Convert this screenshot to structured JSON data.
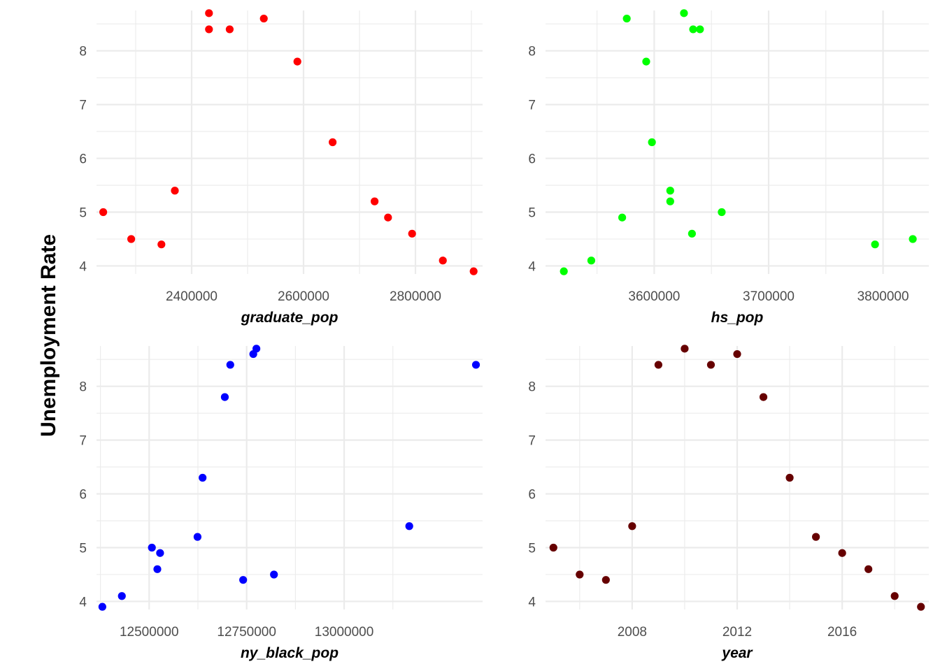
{
  "figure": {
    "ylabel": "Unemployment Rate"
  },
  "chart_data": [
    {
      "type": "scatter",
      "xlabel": "graduate_pop",
      "ylabel": "Unemployment Rate",
      "color": "#ff0000",
      "xlim": [
        2230000,
        2920000
      ],
      "ylim": [
        3.85,
        8.75
      ],
      "x_ticks": [
        2400000,
        2600000,
        2800000
      ],
      "x_tick_labels": [
        "2400000",
        "2600000",
        "2800000"
      ],
      "x_minor": [
        2300000,
        2500000,
        2700000,
        2900000
      ],
      "y_ticks": [
        4,
        5,
        6,
        7,
        8
      ],
      "y_tick_labels": [
        "4",
        "5",
        "6",
        "7",
        "8"
      ],
      "grid": true,
      "points": [
        {
          "x": 2242000,
          "y": 5.0
        },
        {
          "x": 2292000,
          "y": 4.5
        },
        {
          "x": 2346000,
          "y": 4.4
        },
        {
          "x": 2370000,
          "y": 5.4
        },
        {
          "x": 2431000,
          "y": 8.7
        },
        {
          "x": 2431000,
          "y": 8.4
        },
        {
          "x": 2468000,
          "y": 8.4
        },
        {
          "x": 2529000,
          "y": 8.6
        },
        {
          "x": 2589000,
          "y": 7.8
        },
        {
          "x": 2652000,
          "y": 6.3
        },
        {
          "x": 2727000,
          "y": 5.2
        },
        {
          "x": 2751000,
          "y": 4.9
        },
        {
          "x": 2794000,
          "y": 4.6
        },
        {
          "x": 2849000,
          "y": 4.1
        },
        {
          "x": 2904000,
          "y": 3.9
        }
      ]
    },
    {
      "type": "scatter",
      "xlabel": "hs_pop",
      "ylabel": "Unemployment Rate",
      "color": "#00ff00",
      "xlim": [
        3505000,
        3840000
      ],
      "ylim": [
        3.85,
        8.75
      ],
      "x_ticks": [
        3600000,
        3700000,
        3800000
      ],
      "x_tick_labels": [
        "3600000",
        "3700000",
        "3800000"
      ],
      "x_minor": [
        3550000,
        3650000,
        3750000
      ],
      "y_ticks": [
        4,
        5,
        6,
        7,
        8
      ],
      "y_tick_labels": [
        "4",
        "5",
        "6",
        "7",
        "8"
      ],
      "grid": true,
      "points": [
        {
          "x": 3521000,
          "y": 3.9
        },
        {
          "x": 3545000,
          "y": 4.1
        },
        {
          "x": 3572000,
          "y": 4.9
        },
        {
          "x": 3576000,
          "y": 8.6
        },
        {
          "x": 3593000,
          "y": 7.8
        },
        {
          "x": 3598000,
          "y": 6.3
        },
        {
          "x": 3614000,
          "y": 5.4
        },
        {
          "x": 3614000,
          "y": 5.2
        },
        {
          "x": 3626000,
          "y": 8.7
        },
        {
          "x": 3633000,
          "y": 4.6
        },
        {
          "x": 3634000,
          "y": 8.4
        },
        {
          "x": 3640000,
          "y": 8.4
        },
        {
          "x": 3659000,
          "y": 5.0
        },
        {
          "x": 3793000,
          "y": 4.4
        },
        {
          "x": 3826000,
          "y": 4.5
        }
      ]
    },
    {
      "type": "scatter",
      "xlabel": "ny_black_pop",
      "ylabel": "Unemployment Rate",
      "color": "#0000ff",
      "xlim": [
        12365000,
        13355000
      ],
      "ylim": [
        3.85,
        8.75
      ],
      "x_ticks": [
        12500000,
        12750000,
        13000000
      ],
      "x_tick_labels": [
        "12500000",
        "12750000",
        "13000000"
      ],
      "x_minor": [
        12375000,
        12625000,
        12875000,
        13125000
      ],
      "y_ticks": [
        4,
        5,
        6,
        7,
        8
      ],
      "y_tick_labels": [
        "4",
        "5",
        "6",
        "7",
        "8"
      ],
      "grid": true,
      "points": [
        {
          "x": 12380000,
          "y": 3.9
        },
        {
          "x": 12430000,
          "y": 4.1
        },
        {
          "x": 12507000,
          "y": 5.0
        },
        {
          "x": 12528000,
          "y": 4.9
        },
        {
          "x": 12521000,
          "y": 4.6
        },
        {
          "x": 12624000,
          "y": 5.2
        },
        {
          "x": 12637000,
          "y": 6.3
        },
        {
          "x": 12694000,
          "y": 7.8
        },
        {
          "x": 12708000,
          "y": 8.4
        },
        {
          "x": 12767000,
          "y": 8.6
        },
        {
          "x": 12775000,
          "y": 8.7
        },
        {
          "x": 12741000,
          "y": 4.4
        },
        {
          "x": 12820000,
          "y": 4.5
        },
        {
          "x": 13167000,
          "y": 5.4
        },
        {
          "x": 13338000,
          "y": 8.4
        }
      ]
    },
    {
      "type": "scatter",
      "xlabel": "year",
      "ylabel": "Unemployment Rate",
      "color": "#660000",
      "xlim": [
        2004.7,
        2019.3
      ],
      "ylim": [
        3.85,
        8.75
      ],
      "x_ticks": [
        2008,
        2012,
        2016
      ],
      "x_tick_labels": [
        "2008",
        "2012",
        "2016"
      ],
      "x_minor": [
        2006,
        2010,
        2014,
        2018
      ],
      "y_ticks": [
        4,
        5,
        6,
        7,
        8
      ],
      "y_tick_labels": [
        "4",
        "5",
        "6",
        "7",
        "8"
      ],
      "grid": true,
      "points": [
        {
          "x": 2005,
          "y": 5.0
        },
        {
          "x": 2006,
          "y": 4.5
        },
        {
          "x": 2007,
          "y": 4.4
        },
        {
          "x": 2008,
          "y": 5.4
        },
        {
          "x": 2009,
          "y": 8.4
        },
        {
          "x": 2010,
          "y": 8.7
        },
        {
          "x": 2011,
          "y": 8.4
        },
        {
          "x": 2012,
          "y": 8.6
        },
        {
          "x": 2013,
          "y": 7.8
        },
        {
          "x": 2014,
          "y": 6.3
        },
        {
          "x": 2015,
          "y": 5.2
        },
        {
          "x": 2016,
          "y": 4.9
        },
        {
          "x": 2017,
          "y": 4.6
        },
        {
          "x": 2018,
          "y": 4.1
        },
        {
          "x": 2019,
          "y": 3.9
        }
      ]
    }
  ]
}
